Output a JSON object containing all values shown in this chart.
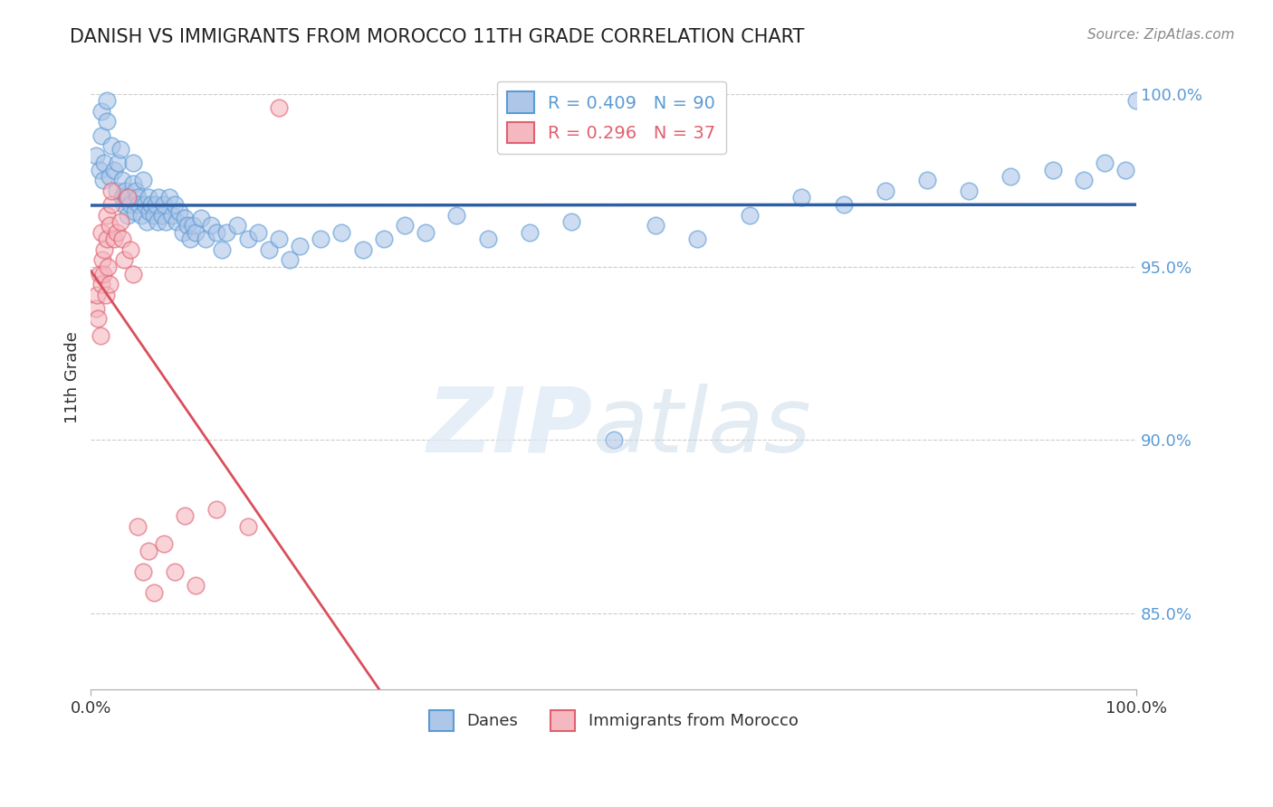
{
  "title": "DANISH VS IMMIGRANTS FROM MOROCCO 11TH GRADE CORRELATION CHART",
  "source_text": "Source: ZipAtlas.com",
  "ylabel": "11th Grade",
  "xlim": [
    0.0,
    1.0
  ],
  "ylim": [
    0.828,
    1.008
  ],
  "yticks": [
    0.85,
    0.9,
    0.95,
    1.0
  ],
  "ytick_labels": [
    "85.0%",
    "90.0%",
    "95.0%",
    "100.0%"
  ],
  "r_danes": 0.409,
  "n_danes": 90,
  "r_morocco": 0.296,
  "n_morocco": 37,
  "color_danes_fill": "#aec6e8",
  "color_danes_edge": "#5b9bd5",
  "color_morocco_fill": "#f4b8c1",
  "color_morocco_edge": "#e06070",
  "color_danes_line": "#2e5fa3",
  "color_morocco_line": "#d94f5c",
  "legend_danes": "Danes",
  "legend_morocco": "Immigrants from Morocco",
  "danes_x": [
    0.005,
    0.008,
    0.01,
    0.01,
    0.012,
    0.013,
    0.015,
    0.015,
    0.018,
    0.02,
    0.022,
    0.025,
    0.026,
    0.028,
    0.03,
    0.03,
    0.032,
    0.033,
    0.035,
    0.036,
    0.038,
    0.04,
    0.04,
    0.042,
    0.043,
    0.045,
    0.046,
    0.048,
    0.05,
    0.052,
    0.053,
    0.055,
    0.056,
    0.058,
    0.06,
    0.062,
    0.064,
    0.065,
    0.068,
    0.07,
    0.072,
    0.075,
    0.078,
    0.08,
    0.082,
    0.085,
    0.088,
    0.09,
    0.092,
    0.095,
    0.098,
    0.1,
    0.105,
    0.11,
    0.115,
    0.12,
    0.125,
    0.13,
    0.14,
    0.15,
    0.16,
    0.17,
    0.18,
    0.19,
    0.2,
    0.22,
    0.24,
    0.26,
    0.28,
    0.3,
    0.32,
    0.35,
    0.38,
    0.42,
    0.46,
    0.5,
    0.54,
    0.58,
    0.63,
    0.68,
    0.72,
    0.76,
    0.8,
    0.84,
    0.88,
    0.92,
    0.95,
    0.97,
    0.99,
    1.0
  ],
  "danes_y": [
    0.982,
    0.978,
    0.995,
    0.988,
    0.975,
    0.98,
    0.998,
    0.992,
    0.976,
    0.985,
    0.978,
    0.972,
    0.98,
    0.984,
    0.97,
    0.975,
    0.968,
    0.972,
    0.965,
    0.97,
    0.968,
    0.974,
    0.98,
    0.966,
    0.972,
    0.97,
    0.968,
    0.965,
    0.975,
    0.968,
    0.963,
    0.97,
    0.966,
    0.968,
    0.965,
    0.968,
    0.963,
    0.97,
    0.965,
    0.968,
    0.963,
    0.97,
    0.965,
    0.968,
    0.963,
    0.966,
    0.96,
    0.964,
    0.962,
    0.958,
    0.962,
    0.96,
    0.964,
    0.958,
    0.962,
    0.96,
    0.955,
    0.96,
    0.962,
    0.958,
    0.96,
    0.955,
    0.958,
    0.952,
    0.956,
    0.958,
    0.96,
    0.955,
    0.958,
    0.962,
    0.96,
    0.965,
    0.958,
    0.96,
    0.963,
    0.9,
    0.962,
    0.958,
    0.965,
    0.97,
    0.968,
    0.972,
    0.975,
    0.972,
    0.976,
    0.978,
    0.975,
    0.98,
    0.978,
    0.998
  ],
  "morocco_x": [
    0.005,
    0.006,
    0.007,
    0.008,
    0.009,
    0.01,
    0.01,
    0.011,
    0.012,
    0.013,
    0.014,
    0.015,
    0.015,
    0.016,
    0.018,
    0.018,
    0.02,
    0.02,
    0.022,
    0.025,
    0.028,
    0.03,
    0.032,
    0.035,
    0.038,
    0.04,
    0.045,
    0.05,
    0.055,
    0.06,
    0.07,
    0.08,
    0.09,
    0.1,
    0.12,
    0.15,
    0.18
  ],
  "morocco_y": [
    0.938,
    0.942,
    0.935,
    0.948,
    0.93,
    0.96,
    0.945,
    0.952,
    0.948,
    0.955,
    0.942,
    0.965,
    0.958,
    0.95,
    0.962,
    0.945,
    0.968,
    0.972,
    0.958,
    0.96,
    0.963,
    0.958,
    0.952,
    0.97,
    0.955,
    0.948,
    0.875,
    0.862,
    0.868,
    0.856,
    0.87,
    0.862,
    0.878,
    0.858,
    0.88,
    0.875,
    0.996
  ]
}
